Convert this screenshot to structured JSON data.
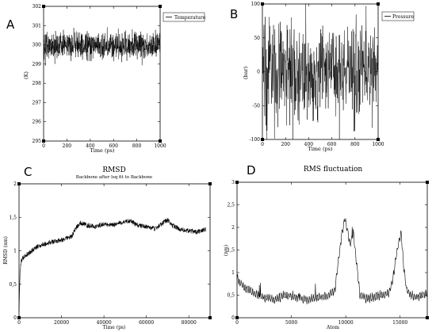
{
  "panels": [
    {
      "letter": "A"
    },
    {
      "letter": "B"
    },
    {
      "letter": "C"
    },
    {
      "letter": "D"
    }
  ],
  "chart_data": [
    {
      "type": "line",
      "title": "",
      "xlabel": "Time (ps)",
      "ylabel": "(K)",
      "xlim": [
        0,
        1000
      ],
      "ylim": [
        295,
        302
      ],
      "xticks": [
        0,
        200,
        400,
        600,
        800,
        1000
      ],
      "yticks": [
        295,
        296,
        297,
        298,
        299,
        300,
        301,
        302
      ],
      "legend": "top-right",
      "series": [
        {
          "name": "Temperature",
          "mean": 300.0,
          "amplitude": 0.45,
          "points": 800,
          "color": "#000000"
        }
      ]
    },
    {
      "type": "line",
      "title": "",
      "xlabel": "Time (ps)",
      "ylabel": "(bar)",
      "xlim": [
        0,
        1000
      ],
      "ylim": [
        -100,
        100
      ],
      "xticks": [
        0,
        200,
        400,
        600,
        800,
        1000
      ],
      "yticks": [
        -100,
        -50,
        0,
        50,
        100
      ],
      "legend": "top-right",
      "series": [
        {
          "name": "Pressure",
          "mean": 0,
          "amplitude": 45,
          "points": 500,
          "color": "#000000"
        }
      ]
    },
    {
      "type": "line",
      "title": "RMSD",
      "subtitle": "Backbone after lsq fit to Backbone",
      "xlabel": "Time (ps)",
      "ylabel": "RMSD (nm)",
      "xlim": [
        0,
        90000
      ],
      "ylim": [
        0,
        2
      ],
      "xticks": [
        0,
        20000,
        40000,
        60000,
        80000
      ],
      "yticks": [
        0,
        0.5,
        1,
        1.5,
        2
      ],
      "ytick_labels": [
        "0",
        "0,5",
        "1",
        "1,5",
        "2"
      ],
      "series": [
        {
          "name": "",
          "color": "#000000",
          "x": [
            0,
            500,
            1000,
            2000,
            4000,
            6000,
            8000,
            10000,
            14000,
            18000,
            22000,
            25000,
            27000,
            29000,
            32000,
            36000,
            40000,
            44000,
            48000,
            52000,
            56000,
            60000,
            64000,
            68000,
            70000,
            72000,
            76000,
            80000,
            84000,
            88000
          ],
          "y": [
            0.1,
            0.7,
            0.85,
            0.9,
            0.95,
            1.0,
            1.05,
            1.08,
            1.12,
            1.15,
            1.18,
            1.22,
            1.35,
            1.42,
            1.38,
            1.36,
            1.4,
            1.38,
            1.42,
            1.45,
            1.38,
            1.36,
            1.33,
            1.42,
            1.46,
            1.38,
            1.32,
            1.3,
            1.28,
            1.32
          ]
        }
      ]
    },
    {
      "type": "line",
      "title": "RMS fluctuation",
      "xlabel": "Atom",
      "ylabel": "(nm)",
      "xlim": [
        0,
        17500
      ],
      "ylim": [
        0,
        3
      ],
      "xticks": [
        0,
        5000,
        10000,
        15000
      ],
      "yticks": [
        0,
        0.5,
        1,
        1.5,
        2,
        2.5,
        3
      ],
      "ytick_labels": [
        "0",
        "0,5",
        "1",
        "1,5",
        "2",
        "2,5",
        "3"
      ],
      "series": [
        {
          "name": "",
          "color": "#000000",
          "x": [
            0,
            300,
            800,
            1500,
            2500,
            3500,
            4500,
            5500,
            6500,
            7500,
            8500,
            9000,
            9300,
            9600,
            9900,
            10100,
            10400,
            10700,
            11000,
            11300,
            11600,
            12000,
            12500,
            13000,
            13500,
            14000,
            14300,
            14600,
            14900,
            15100,
            15300,
            15600,
            16000,
            16500,
            17000,
            17500
          ],
          "y": [
            0.9,
            0.75,
            0.65,
            0.55,
            0.45,
            0.4,
            0.5,
            0.45,
            0.4,
            0.45,
            0.5,
            0.6,
            1.2,
            1.8,
            2.2,
            2.0,
            1.6,
            1.9,
            1.2,
            0.5,
            0.45,
            0.42,
            0.45,
            0.48,
            0.5,
            0.55,
            0.8,
            1.3,
            1.7,
            1.9,
            1.2,
            0.6,
            0.5,
            0.45,
            0.5,
            0.55
          ]
        }
      ]
    }
  ]
}
